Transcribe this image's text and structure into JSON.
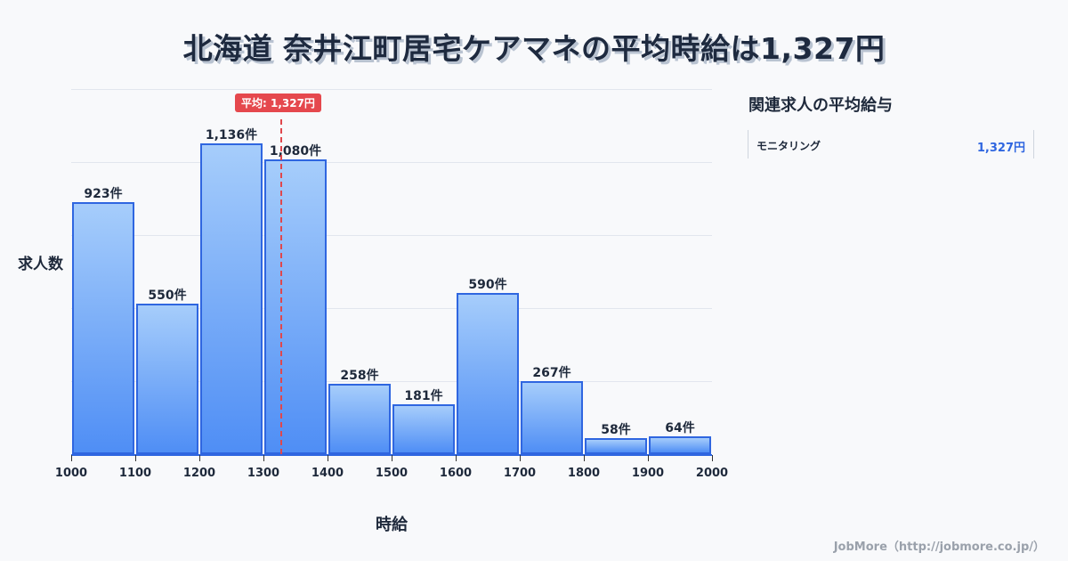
{
  "title": "北海道 奈井江町居宅ケアマネの平均時給は1,327円",
  "chart": {
    "ylabel": "求人数",
    "xlabel": "時給",
    "avg_badge": "平均: 1,327円",
    "x_ticks": [
      "1000",
      "1100",
      "1200",
      "1300",
      "1400",
      "1500",
      "1600",
      "1700",
      "1800",
      "1900",
      "2000"
    ],
    "bar_labels": [
      "923件",
      "550件",
      "1,136件",
      "1,080件",
      "258件",
      "181件",
      "590件",
      "267件",
      "58件",
      "64件"
    ]
  },
  "sidebar": {
    "title": "関連求人の平均給与",
    "items": [
      {
        "name": "モニタリング",
        "value": "1,327円"
      }
    ]
  },
  "footer": "JobMore（http://jobmore.co.jp/）",
  "colors": {
    "bar": "#4f8ef5",
    "bar_border": "#2f66e0",
    "avg": "#e5484d",
    "accent_value": "#2f66e0"
  },
  "chart_data": {
    "type": "bar",
    "title": "北海道 奈井江町居宅ケアマネの平均時給は1,327円",
    "xlabel": "時給",
    "ylabel": "求人数",
    "categories": [
      "1000-1100",
      "1100-1200",
      "1200-1300",
      "1300-1400",
      "1400-1500",
      "1500-1600",
      "1600-1700",
      "1700-1800",
      "1800-1900",
      "1900-2000"
    ],
    "values": [
      923,
      550,
      1136,
      1080,
      258,
      181,
      590,
      267,
      58,
      64
    ],
    "x_ticks": [
      1000,
      1100,
      1200,
      1300,
      1400,
      1500,
      1600,
      1700,
      1800,
      1900,
      2000
    ],
    "annotations": [
      {
        "type": "vline",
        "x": 1327,
        "label": "平均: 1,327円"
      }
    ],
    "grid": true,
    "ylim": [
      0,
      1336
    ]
  }
}
